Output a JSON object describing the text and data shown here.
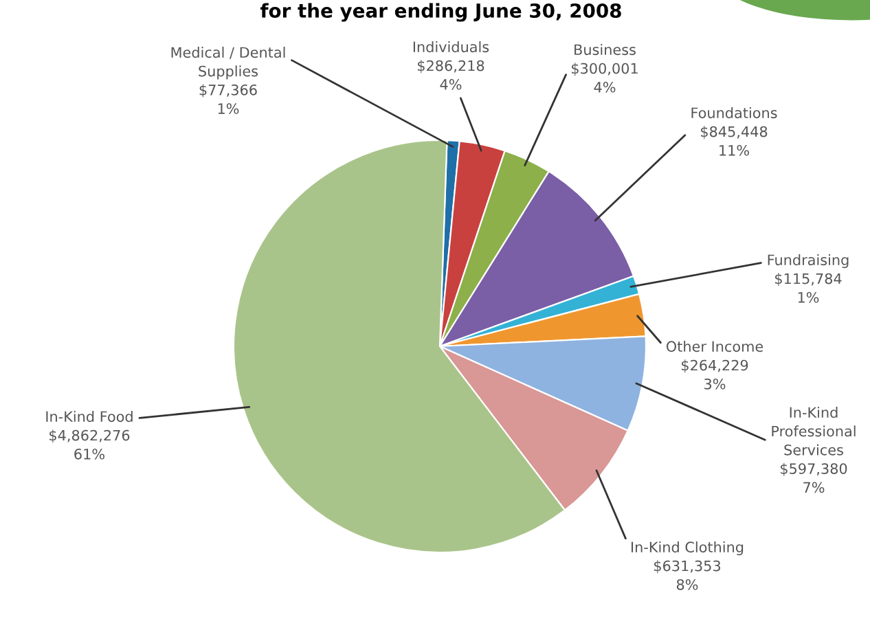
{
  "chart_data": {
    "type": "pie",
    "title": "for the year ending June 30, 2008",
    "categories": [
      "Medical / Dental\nSupplies",
      "Individuals",
      "Business",
      "Foundations",
      "Fundraising",
      "Other Income",
      "In-Kind\nProfessional\nServices",
      "In-Kind Clothing",
      "In-Kind Food"
    ],
    "values": [
      77366,
      286218,
      300001,
      845448,
      115784,
      264229,
      597380,
      631353,
      4862276
    ],
    "value_labels": [
      "$77,366\n1%",
      "$286,218\n4%",
      "$300,001\n4%",
      "$845,448\n11%",
      "$115,784\n1%",
      "$264,229\n3%",
      "$597,380\n7%",
      "$631,353\n8%",
      "$4,862,276\n61%"
    ],
    "colors": [
      "#1f6fa8",
      "#c9413f",
      "#8db04a",
      "#7a5ea6",
      "#33b2d6",
      "#f0962f",
      "#8fb3e0",
      "#d99795",
      "#a9c48a"
    ],
    "legend": false
  }
}
